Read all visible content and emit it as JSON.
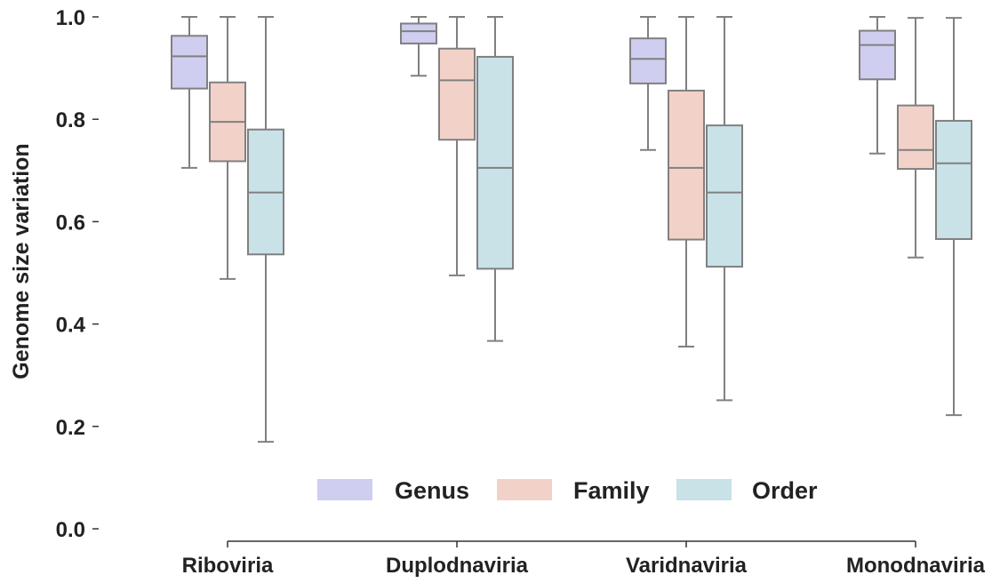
{
  "chart_data": {
    "type": "box",
    "title": "",
    "xlabel": "",
    "ylabel": "Genome size variation",
    "ylim": [
      0,
      1.0
    ],
    "yticks": [
      "0.0",
      "0.2",
      "0.4",
      "0.6",
      "0.8",
      "1.0"
    ],
    "ytick_values": [
      0.0,
      0.2,
      0.4,
      0.6,
      0.8,
      1.0
    ],
    "categories": [
      "Riboviria",
      "Duplodnaviria",
      "Varidnaviria",
      "Monodnaviria"
    ],
    "grid": false,
    "legend_position": "bottom-center",
    "series": [
      {
        "name": "Genus",
        "color": "#cfcdf0",
        "boxes": [
          {
            "min": 0.705,
            "q1": 0.86,
            "median": 0.923,
            "q3": 0.963,
            "max": 1.0
          },
          {
            "min": 0.885,
            "q1": 0.948,
            "median": 0.972,
            "q3": 0.987,
            "max": 1.0
          },
          {
            "min": 0.74,
            "q1": 0.87,
            "median": 0.918,
            "q3": 0.958,
            "max": 1.0
          },
          {
            "min": 0.733,
            "q1": 0.878,
            "median": 0.945,
            "q3": 0.973,
            "max": 1.0
          }
        ]
      },
      {
        "name": "Family",
        "color": "#f2d2c8",
        "boxes": [
          {
            "min": 0.488,
            "q1": 0.718,
            "median": 0.795,
            "q3": 0.872,
            "max": 1.0
          },
          {
            "min": 0.495,
            "q1": 0.76,
            "median": 0.876,
            "q3": 0.938,
            "max": 1.0
          },
          {
            "min": 0.356,
            "q1": 0.565,
            "median": 0.705,
            "q3": 0.856,
            "max": 1.0
          },
          {
            "min": 0.53,
            "q1": 0.703,
            "median": 0.74,
            "q3": 0.827,
            "max": 0.998
          }
        ]
      },
      {
        "name": "Order",
        "color": "#c8e2e8",
        "boxes": [
          {
            "min": 0.17,
            "q1": 0.536,
            "median": 0.657,
            "q3": 0.78,
            "max": 1.0
          },
          {
            "min": 0.367,
            "q1": 0.508,
            "median": 0.705,
            "q3": 0.922,
            "max": 1.0
          },
          {
            "min": 0.251,
            "q1": 0.512,
            "median": 0.657,
            "q3": 0.788,
            "max": 1.0
          },
          {
            "min": 0.222,
            "q1": 0.566,
            "median": 0.714,
            "q3": 0.797,
            "max": 0.998
          }
        ]
      }
    ]
  }
}
